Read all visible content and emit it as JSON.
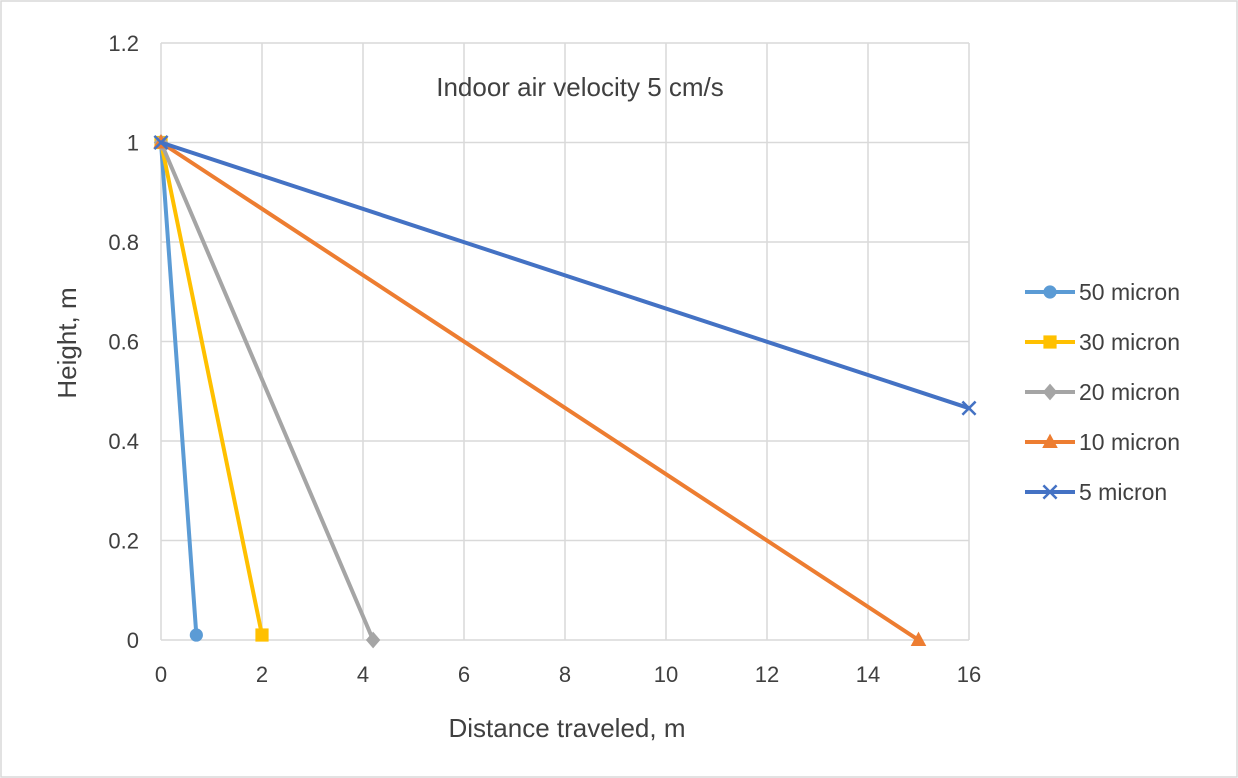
{
  "chart_data": {
    "type": "line",
    "annotation": "Indoor air velocity 5 cm/s",
    "xlabel": "Distance traveled, m",
    "ylabel": "Height, m",
    "xlim": [
      0,
      16
    ],
    "ylim": [
      0,
      1.2
    ],
    "x_ticks": [
      "0",
      "2",
      "4",
      "6",
      "8",
      "10",
      "12",
      "14",
      "16"
    ],
    "y_ticks": [
      "0",
      "0.2",
      "0.4",
      "0.6",
      "0.8",
      "1",
      "1.2"
    ],
    "grid": true,
    "legend_position": "right",
    "series": [
      {
        "name": "50 micron",
        "color": "#5B9BD5",
        "marker": "circle",
        "points": [
          [
            0,
            1
          ],
          [
            0.7,
            0.01
          ]
        ]
      },
      {
        "name": "30 micron",
        "color": "#FFC000",
        "marker": "square",
        "points": [
          [
            0,
            1
          ],
          [
            2.0,
            0.01
          ]
        ]
      },
      {
        "name": "20 micron",
        "color": "#A5A5A5",
        "marker": "diamond",
        "points": [
          [
            0,
            1
          ],
          [
            4.2,
            0.0
          ]
        ]
      },
      {
        "name": "10 micron",
        "color": "#ED7D31",
        "marker": "triangle",
        "points": [
          [
            0,
            1
          ],
          [
            15.0,
            0.0
          ]
        ]
      },
      {
        "name": "5 micron",
        "color": "#4472C4",
        "marker": "x",
        "points": [
          [
            0,
            1
          ],
          [
            16.0,
            0.466
          ]
        ]
      }
    ]
  }
}
